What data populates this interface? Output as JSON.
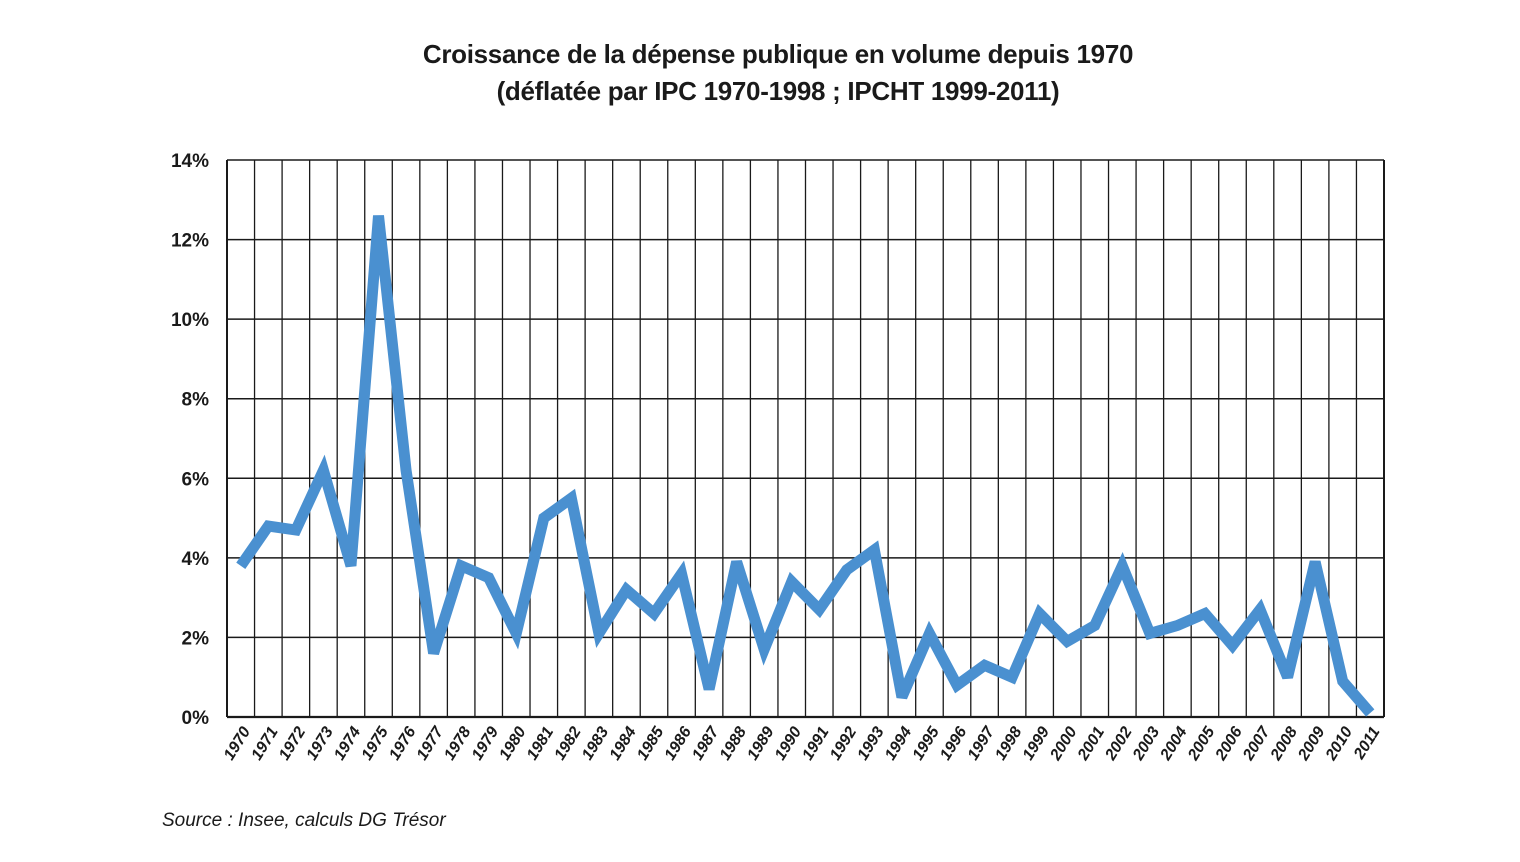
{
  "chart_data": {
    "type": "line",
    "title": "Croissance de la dépense publique en volume depuis 1970",
    "subtitle": "(déflatée par IPC 1970-1998 ; IPCHT 1999-2011)",
    "xlabel": "",
    "ylabel": "",
    "ylim": [
      0,
      14
    ],
    "yticks": [
      0,
      2,
      4,
      6,
      8,
      10,
      12,
      14
    ],
    "ytick_labels": [
      "0%",
      "2%",
      "4%",
      "6%",
      "8%",
      "10%",
      "12%",
      "14%"
    ],
    "grid": true,
    "legend": "none",
    "line_color": "#4a90d0",
    "grid_color": "#1a1a1a",
    "categories": [
      "1970",
      "1971",
      "1972",
      "1973",
      "1974",
      "1975",
      "1976",
      "1977",
      "1978",
      "1979",
      "1980",
      "1981",
      "1982",
      "1983",
      "1984",
      "1985",
      "1986",
      "1987",
      "1988",
      "1989",
      "1990",
      "1991",
      "1992",
      "1993",
      "1994",
      "1995",
      "1996",
      "1997",
      "1998",
      "1999",
      "2000",
      "2001",
      "2002",
      "2003",
      "2004",
      "2005",
      "2006",
      "2007",
      "2008",
      "2009",
      "2010",
      "2011"
    ],
    "values": [
      3.8,
      4.8,
      4.7,
      6.2,
      3.8,
      12.6,
      6.2,
      1.6,
      3.8,
      3.5,
      2.1,
      5.0,
      5.5,
      2.1,
      3.2,
      2.6,
      3.6,
      0.7,
      3.9,
      1.7,
      3.4,
      2.7,
      3.7,
      4.2,
      0.5,
      2.1,
      0.8,
      1.3,
      1.0,
      2.6,
      1.9,
      2.3,
      3.8,
      2.1,
      2.3,
      2.6,
      1.8,
      2.7,
      1.0,
      3.9,
      0.9,
      0.1
    ]
  },
  "source": "Source : Insee, calculs DG Trésor"
}
